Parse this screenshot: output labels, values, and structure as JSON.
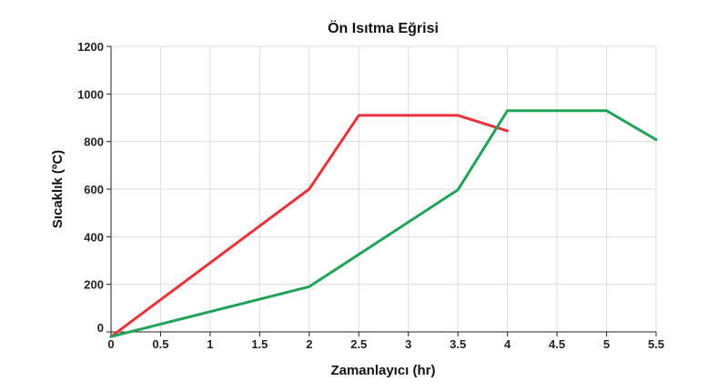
{
  "chart_data": {
    "type": "line",
    "title": "Ön Isıtma Eğrisi",
    "xlabel": "Zamanlayıcı (hr)",
    "ylabel": "Sıcaklık (ºC)",
    "xlim": [
      0,
      5.5
    ],
    "ylim": [
      0,
      1200
    ],
    "xticks": [
      0,
      0.5,
      1,
      1.5,
      2,
      2.5,
      3,
      3.5,
      4,
      4.5,
      5,
      5.5
    ],
    "xtick_labels": [
      "0",
      "0.5",
      "1",
      "1.5",
      "2",
      "2.5",
      "3",
      "3.5",
      "4",
      "4.5",
      "5",
      "5.5"
    ],
    "yticks": [
      0,
      200,
      400,
      600,
      800,
      1000,
      1200
    ],
    "ytick_labels": [
      "0",
      "200",
      "400",
      "600",
      "800",
      "1000",
      "1200"
    ],
    "grid": true,
    "legend": false,
    "series": [
      {
        "color": "#e8333a",
        "x": [
          0,
          2,
          2.5,
          3.5,
          4
        ],
        "y": [
          -20,
          600,
          910,
          910,
          845
        ]
      },
      {
        "color": "#22a35a",
        "x": [
          0,
          2,
          3.5,
          4,
          5,
          5.5
        ],
        "y": [
          -20,
          190,
          597,
          930,
          930,
          808
        ]
      }
    ]
  }
}
